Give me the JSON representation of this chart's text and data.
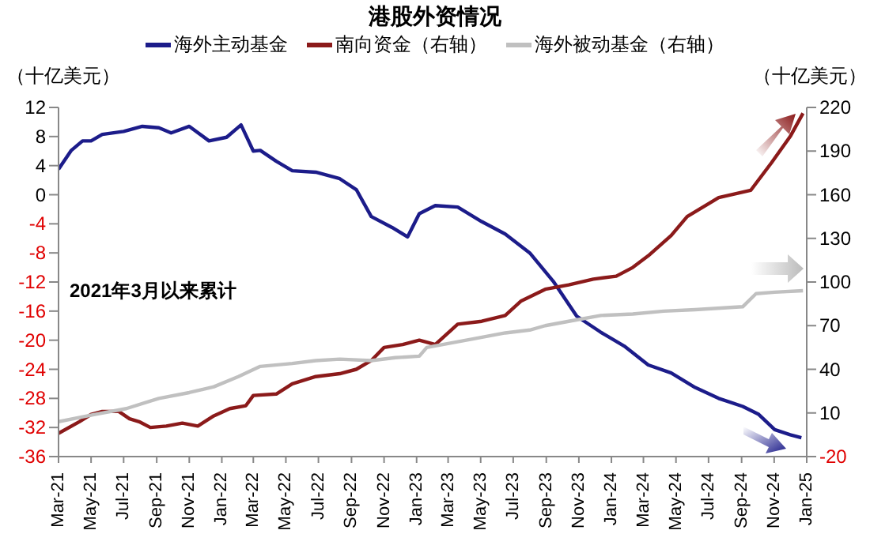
{
  "chart_data": {
    "type": "line",
    "title": "港股外资情况",
    "ylabel": "（十亿美元）",
    "y2label": "（十亿美元）",
    "annotations": [
      "2021年3月以来累计"
    ],
    "legend": "top",
    "grid": false,
    "marker": "none",
    "line_style": "solid",
    "xlim": [
      "2021-03-01",
      "2025-01-01"
    ],
    "xticks": [
      {
        "value": "2021-03-01",
        "label": "Mar-21"
      },
      {
        "value": "2021-05-01",
        "label": "May-21"
      },
      {
        "value": "2021-07-01",
        "label": "Jul-21"
      },
      {
        "value": "2021-09-01",
        "label": "Sep-21"
      },
      {
        "value": "2021-11-01",
        "label": "Nov-21"
      },
      {
        "value": "2022-01-01",
        "label": "Jan-22"
      },
      {
        "value": "2022-03-01",
        "label": "Mar-22"
      },
      {
        "value": "2022-05-01",
        "label": "May-22"
      },
      {
        "value": "2022-07-01",
        "label": "Jul-22"
      },
      {
        "value": "2022-09-01",
        "label": "Sep-22"
      },
      {
        "value": "2022-11-01",
        "label": "Nov-22"
      },
      {
        "value": "2023-01-01",
        "label": "Jan-23"
      },
      {
        "value": "2023-03-01",
        "label": "Mar-23"
      },
      {
        "value": "2023-05-01",
        "label": "May-23"
      },
      {
        "value": "2023-07-01",
        "label": "Jul-23"
      },
      {
        "value": "2023-09-01",
        "label": "Sep-23"
      },
      {
        "value": "2023-11-01",
        "label": "Nov-23"
      },
      {
        "value": "2024-01-01",
        "label": "Jan-24"
      },
      {
        "value": "2024-03-01",
        "label": "Mar-24"
      },
      {
        "value": "2024-05-01",
        "label": "May-24"
      },
      {
        "value": "2024-07-01",
        "label": "Jul-24"
      },
      {
        "value": "2024-09-01",
        "label": "Sep-24"
      },
      {
        "value": "2024-11-01",
        "label": "Nov-24"
      },
      {
        "value": "2025-01-01",
        "label": "Jan-25"
      }
    ],
    "ylim": [
      -36,
      12
    ],
    "yticks": [
      -36,
      -32,
      -28,
      -24,
      -20,
      -16,
      -12,
      -8,
      -4,
      0,
      4,
      8,
      12
    ],
    "y2lim": [
      -20,
      220
    ],
    "y2ticks": [
      -20,
      10,
      40,
      70,
      100,
      130,
      160,
      190,
      220
    ],
    "series": [
      {
        "name": "海外主动基金",
        "color": "#1c1c8a",
        "x": [
          "2021-03-01",
          "2021-03-25",
          "2021-04-15",
          "2021-05-01",
          "2021-05-22",
          "2021-07-01",
          "2021-08-05",
          "2021-09-05",
          "2021-09-28",
          "2021-11-01",
          "2021-12-08",
          "2022-01-10",
          "2022-02-06",
          "2022-03-01",
          "2022-03-14",
          "2022-04-13",
          "2022-05-13",
          "2022-06-26",
          "2022-08-10",
          "2022-09-10",
          "2022-10-08",
          "2022-11-16",
          "2022-12-15",
          "2023-01-06",
          "2023-02-05",
          "2023-03-19",
          "2023-05-03",
          "2023-06-16",
          "2023-08-01",
          "2023-09-14",
          "2023-10-28",
          "2023-12-12",
          "2024-01-25",
          "2024-03-10",
          "2024-04-22",
          "2024-06-06",
          "2024-07-20",
          "2024-09-03",
          "2024-10-03",
          "2024-11-02",
          "2024-12-01",
          "2024-12-22"
        ],
        "values": [
          3.5,
          6.1,
          7.4,
          7.4,
          8.3,
          8.7,
          9.4,
          9.2,
          8.5,
          9.4,
          7.4,
          7.9,
          9.6,
          6.0,
          6.1,
          4.6,
          3.3,
          3.1,
          2.2,
          0.7,
          -3,
          -4.5,
          -5.8,
          -2.6,
          -1.5,
          -1.7,
          -3.7,
          -5.4,
          -8,
          -11.9,
          -16.7,
          -18.9,
          -20.8,
          -23.4,
          -24.5,
          -26.5,
          -28,
          -29.1,
          -30.2,
          -32.3,
          -33,
          -33.4
        ]
      },
      {
        "name": "南向资金（右轴）",
        "color": "#8b1a1a",
        "axis": "y2",
        "x": [
          "2021-03-01",
          "2021-04-09",
          "2021-05-01",
          "2021-05-22",
          "2021-06-22",
          "2021-07-12",
          "2021-07-30",
          "2021-08-20",
          "2021-09-19",
          "2021-10-19",
          "2021-11-17",
          "2021-12-17",
          "2022-01-16",
          "2022-02-15",
          "2022-03-01",
          "2022-04-13",
          "2022-05-13",
          "2022-06-26",
          "2022-08-10",
          "2022-09-10",
          "2022-10-08",
          "2022-11-01",
          "2022-12-06",
          "2023-01-06",
          "2023-02-05",
          "2023-03-19",
          "2023-05-03",
          "2023-06-16",
          "2023-07-16",
          "2023-08-30",
          "2023-10-13",
          "2023-11-28",
          "2024-01-10",
          "2024-02-10",
          "2024-03-10",
          "2024-04-22",
          "2024-05-22",
          "2024-07-20",
          "2024-09-18",
          "2024-10-27",
          "2024-12-01",
          "2024-12-25"
        ],
        "values": [
          -4,
          4,
          9,
          11,
          11,
          6,
          4,
          0,
          1,
          3,
          1,
          8,
          13,
          15,
          22,
          23,
          30,
          35,
          37,
          40,
          46,
          55,
          57,
          60,
          57,
          71,
          73,
          77,
          87,
          95,
          98,
          102,
          104,
          110,
          118,
          132,
          145,
          158,
          163,
          182,
          200,
          216
        ]
      },
      {
        "name": "海外被动基金（右轴）",
        "color": "#c0c0c0",
        "axis": "y2",
        "x": [
          "2021-03-01",
          "2021-05-08",
          "2021-07-06",
          "2021-09-05",
          "2021-11-01",
          "2021-12-17",
          "2022-02-01",
          "2022-03-14",
          "2022-05-13",
          "2022-06-26",
          "2022-08-10",
          "2022-10-08",
          "2022-11-22",
          "2023-01-06",
          "2023-01-20",
          "2023-04-18",
          "2023-06-16",
          "2023-08-01",
          "2023-08-30",
          "2023-10-13",
          "2023-12-12",
          "2024-02-10",
          "2024-04-08",
          "2024-06-06",
          "2024-09-03",
          "2024-09-28",
          "2024-11-02",
          "2024-12-25"
        ],
        "values": [
          4,
          9,
          13,
          20,
          24,
          28,
          35,
          42,
          44,
          46,
          47,
          46,
          48,
          49,
          55,
          61,
          65,
          67,
          70,
          73,
          77,
          78,
          80,
          81,
          83,
          92,
          93,
          94
        ]
      }
    ]
  }
}
